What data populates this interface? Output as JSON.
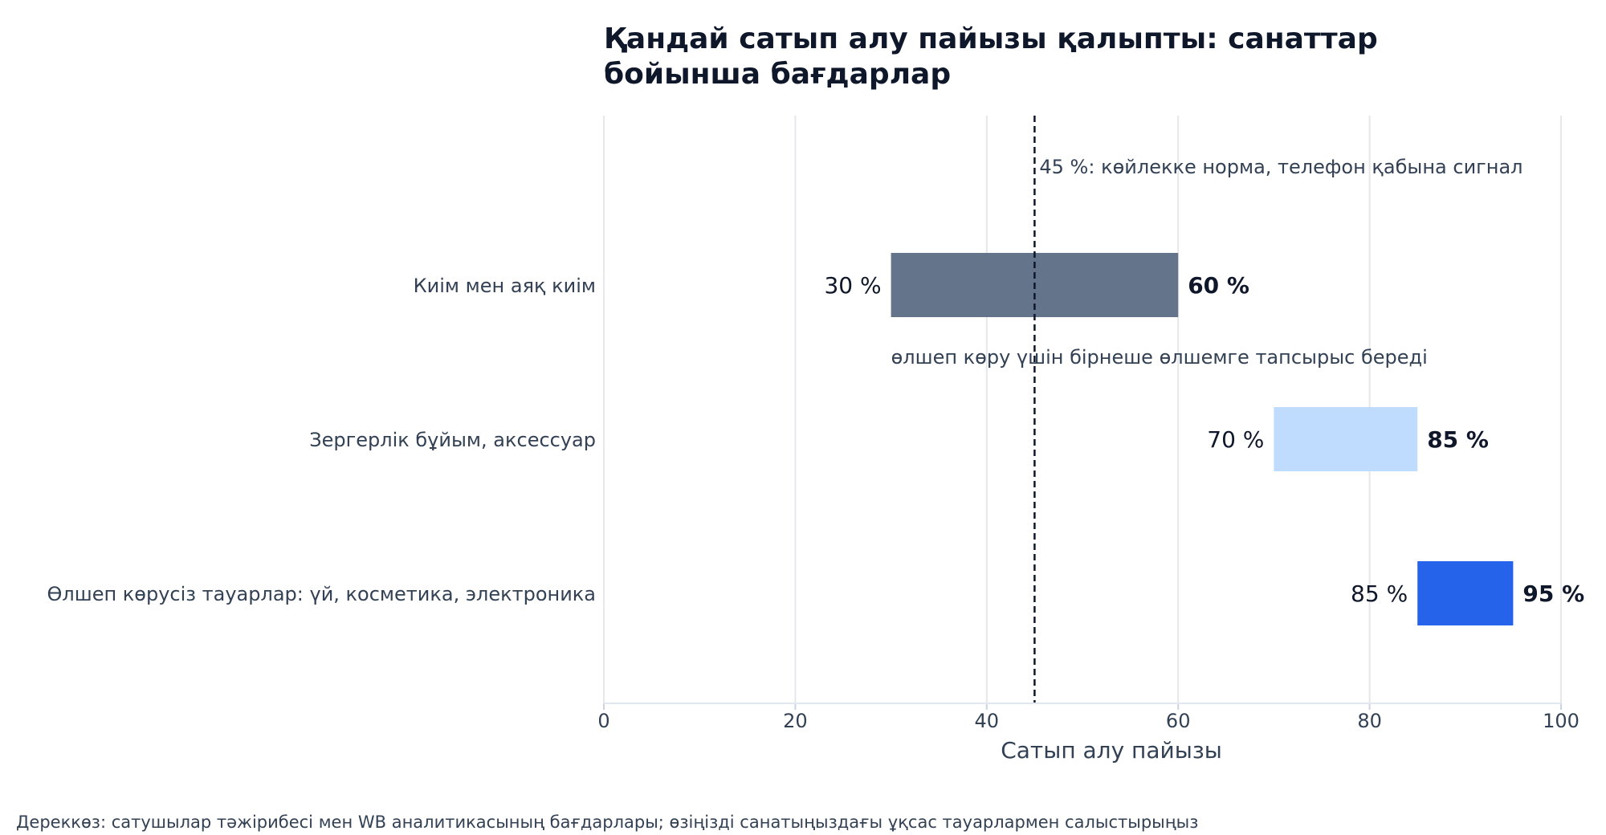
{
  "chart_data": {
    "type": "bar",
    "title": "Қандай сатып алу пайызы қалыпты: санаттар бойынша бағдарлар",
    "title_lines": [
      "Қандай сатып алу пайызы қалыпты: санаттар",
      "бойынша бағдарлар"
    ],
    "xlabel": "Сатып алу пайызы",
    "ylabel": "",
    "xlim": [
      0,
      100
    ],
    "x_ticks": [
      0,
      20,
      40,
      60,
      80,
      100
    ],
    "grid": true,
    "orientation": "horizontal",
    "categories": [
      "Киім мен аяқ киім",
      "Зергерлік бұйым, аксессуар",
      "Өлшеп көрусіз тауарлар: үй, косметика, электроника"
    ],
    "ranges": [
      {
        "low": 30,
        "high": 60,
        "low_label": "30 %",
        "high_label": "60 %",
        "color": "#64748b"
      },
      {
        "low": 70,
        "high": 85,
        "low_label": "70 %",
        "high_label": "85 %",
        "color": "#bfdbfe"
      },
      {
        "low": 85,
        "high": 95,
        "low_label": "85 %",
        "high_label": "95 %",
        "color": "#2563eb"
      }
    ],
    "reference_line": {
      "value": 45,
      "label": "45 %: көйлекке норма, телефон қабына сигнал"
    },
    "bar_annotation": {
      "category_index": 0,
      "text": "өлшеп көру үшін бірнеше өлшемге тапсырыс береді"
    },
    "source": "Дереккөз: сатушылар тәжірибесі мен WB аналитикасының бағдарлары; өзіңізді санатыңыздағы ұқсас тауарлармен салыстырыңыз"
  }
}
